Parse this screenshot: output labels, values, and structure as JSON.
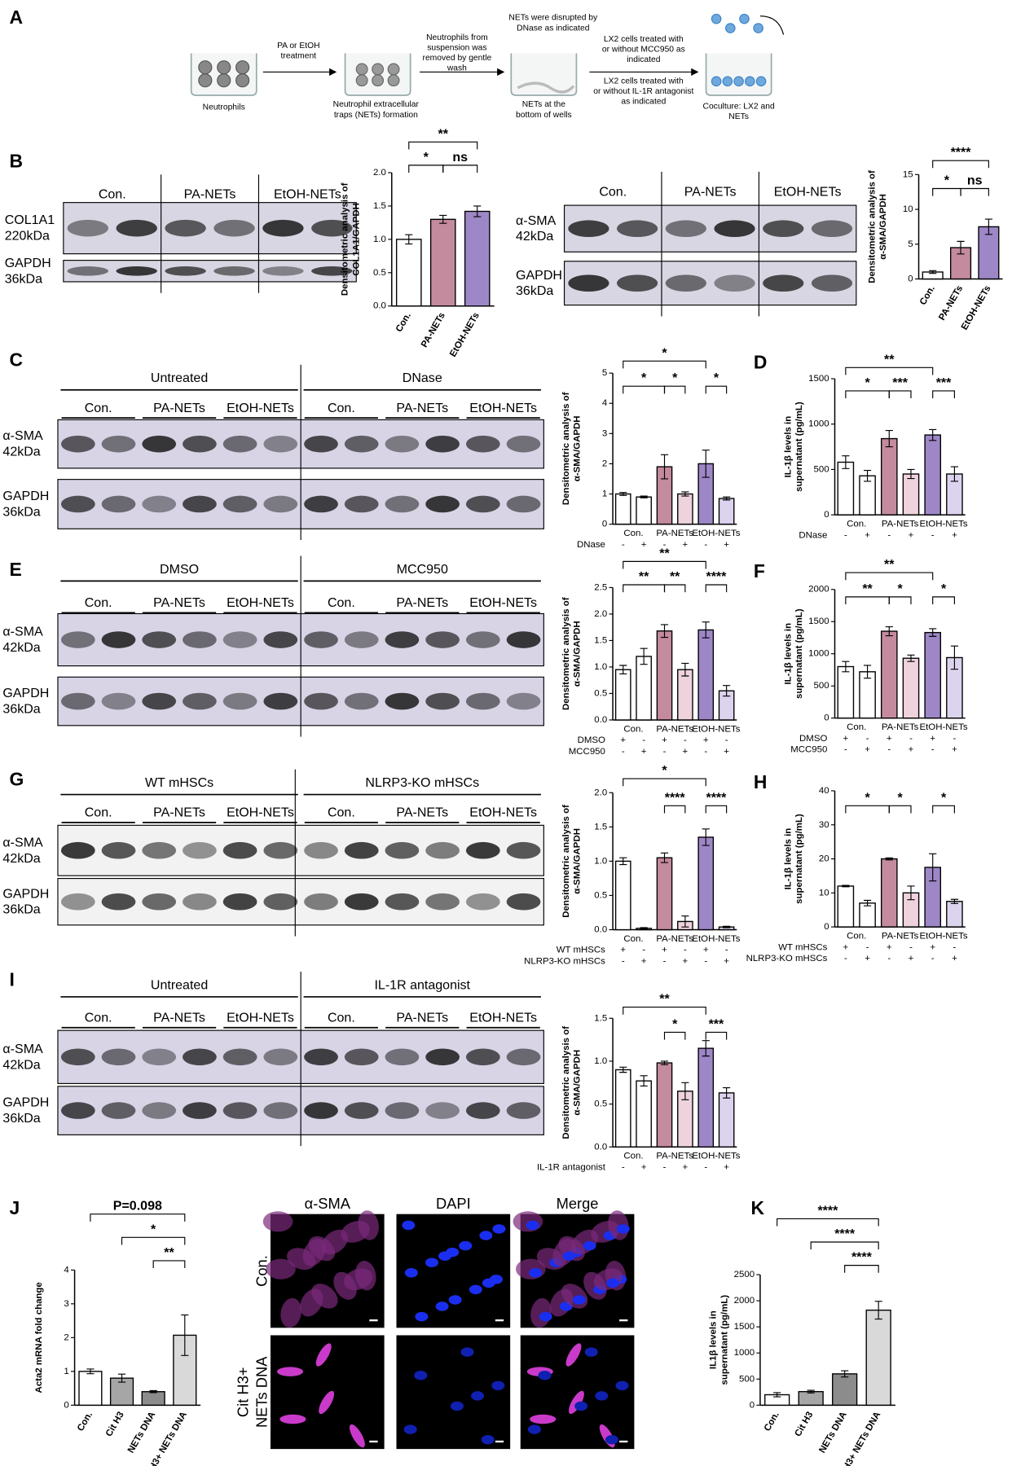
{
  "panel_letters": [
    "A",
    "B",
    "C",
    "D",
    "E",
    "F",
    "G",
    "H",
    "I",
    "J",
    "K"
  ],
  "schematic": {
    "labels": [
      [
        "Neutrophils"
      ],
      [
        "PA or EtOH",
        "treatment"
      ],
      [
        "Neutrophil extracellular",
        "traps (NETs) formation"
      ],
      [
        "Neutrophils from",
        "suspension was",
        "removed by gentle",
        "wash"
      ],
      [
        "NETs were disrupted by",
        "DNase as indicated"
      ],
      [
        "NETs at the",
        "bottom of wells"
      ],
      [
        "LX2 cells treated with",
        "or without MCC950 as",
        "indicated"
      ],
      [
        "LX2 cells treated with",
        "or without IL-1R antagonist",
        "as indicated"
      ],
      [
        "Coculture: LX2  and",
        "NETs"
      ]
    ]
  },
  "blots": [
    {
      "lanes": [
        "Con.",
        "PA-NETs",
        "EtOH-NETs"
      ],
      "rows": [
        {
          "protein": "COL1A1",
          "size": "220kDa"
        },
        {
          "protein": "GAPDH",
          "size": "36kDa"
        }
      ]
    },
    {
      "lanes": [
        "Con.",
        "PA-NETs",
        "EtOH-NETs"
      ],
      "rows": [
        {
          "protein": "α-SMA",
          "size": "42kDa"
        },
        {
          "protein": "GAPDH",
          "size": "36kDa"
        }
      ]
    },
    {
      "groups": [
        "Untreated",
        "DNase"
      ],
      "lanes": [
        "Con.",
        "PA-NETs",
        "EtOH-NETs",
        "Con.",
        "PA-NETs",
        "EtOH-NETs"
      ],
      "rows": [
        {
          "protein": "α-SMA",
          "size": "42kDa"
        },
        {
          "protein": "GAPDH",
          "size": "36kDa"
        }
      ]
    },
    {
      "groups": [
        "DMSO",
        "MCC950"
      ],
      "lanes": [
        "Con.",
        "PA-NETs",
        "EtOH-NETs",
        "Con.",
        "PA-NETs",
        "EtOH-NETs"
      ],
      "rows": [
        {
          "protein": "α-SMA",
          "size": "42kDa"
        },
        {
          "protein": "GAPDH",
          "size": "36kDa"
        }
      ]
    },
    {
      "groups": [
        "WT mHSCs",
        "NLRP3-KO mHSCs"
      ],
      "lanes": [
        "Con.",
        "PA-NETs",
        "EtOH-NETs",
        "Con.",
        "PA-NETs",
        "EtOH-NETs"
      ],
      "rows": [
        {
          "protein": "α-SMA",
          "size": "42kDa"
        },
        {
          "protein": "GAPDH",
          "size": "36kDa"
        }
      ]
    },
    {
      "groups": [
        "Untreated",
        "IL-1R antagonist"
      ],
      "lanes": [
        "Con.",
        "PA-NETs",
        "EtOH-NETs",
        "Con.",
        "PA-NETs",
        "EtOH-NETs"
      ],
      "rows": [
        {
          "protein": "α-SMA",
          "size": "42kDa"
        },
        {
          "protein": "GAPDH",
          "size": "36kDa"
        }
      ]
    }
  ],
  "microscopy": {
    "columns": [
      "α-SMA",
      "DAPI",
      "Merge"
    ],
    "rows": [
      [
        "Con."
      ],
      [
        "Cit H3+",
        "NETs DNA"
      ]
    ]
  },
  "chart_data": [
    {
      "type": "bar",
      "ylabel": [
        "Densitometric analysis of",
        "COL1A1/GAPDH"
      ],
      "categories": [
        "Con.",
        "PA-NETs",
        "EtOH-NETs"
      ],
      "values": [
        1.0,
        1.3,
        1.42
      ],
      "errors": [
        0.07,
        0.06,
        0.08
      ],
      "colors": [
        "#ffffff",
        "#c48a9d",
        "#9d87c7"
      ],
      "ylim": [
        0,
        2
      ],
      "yticks": [
        {
          "value": 0,
          "label": "0.0"
        },
        0.5,
        {
          "value": 1,
          "label": "1.0"
        },
        1.5,
        {
          "value": 2,
          "label": "2.0"
        }
      ],
      "annotations": [
        "**",
        "*",
        "ns"
      ]
    },
    {
      "type": "bar",
      "ylabel": [
        "Densitometric analysis of",
        "α-SMA/GAPDH"
      ],
      "categories": [
        "Con.",
        "PA-NETs",
        "EtOH-NETs"
      ],
      "values": [
        1.0,
        4.5,
        7.5
      ],
      "errors": [
        0.2,
        0.9,
        1.1
      ],
      "colors": [
        "#ffffff",
        "#c48a9d",
        "#9d87c7"
      ],
      "ylim": [
        0,
        15
      ],
      "yticks": [
        0,
        5,
        10,
        15
      ],
      "annotations": [
        "****",
        "*",
        "ns"
      ]
    },
    {
      "type": "bar",
      "ylabel": [
        "Densitometric analysis of",
        "α-SMA/GAPDH"
      ],
      "groups": [
        "Con.",
        "PA-NETs",
        "EtOH-NETs"
      ],
      "treatments": [
        {
          "name": "DNase",
          "signs": [
            "-",
            "+",
            "-",
            "+",
            "-",
            "+"
          ]
        }
      ],
      "values": [
        1.0,
        0.9,
        1.9,
        1.0,
        2.0,
        0.85
      ],
      "errors": [
        0.05,
        0.03,
        0.4,
        0.07,
        0.45,
        0.05
      ],
      "colors": [
        "#ffffff",
        "#ffffff",
        "#c48a9d",
        "#eed3dc",
        "#9d87c7",
        "#dcd3ef"
      ],
      "ylim": [
        0,
        5
      ],
      "yticks": [
        0,
        1,
        2,
        3,
        4,
        5
      ],
      "annotations": [
        "*",
        "*",
        "*",
        "*"
      ]
    },
    {
      "type": "bar",
      "ylabel": [
        "IL-1β levels in",
        "supernatant (pg/mL)"
      ],
      "groups": [
        "Con.",
        "PA-NETs",
        "EtOH-NETs"
      ],
      "treatments": [
        {
          "name": "DNase",
          "signs": [
            "-",
            "+",
            "-",
            "+",
            "-",
            "+"
          ]
        }
      ],
      "values": [
        580,
        430,
        840,
        450,
        880,
        450
      ],
      "errors": [
        70,
        60,
        90,
        50,
        60,
        80
      ],
      "colors": [
        "#ffffff",
        "#ffffff",
        "#c48a9d",
        "#eed3dc",
        "#9d87c7",
        "#dcd3ef"
      ],
      "ylim": [
        0,
        1500
      ],
      "yticks": [
        0,
        500,
        1000,
        1500
      ],
      "annotations": [
        "**",
        "*",
        "***",
        "***"
      ]
    },
    {
      "type": "bar",
      "ylabel": [
        "Densitometric analysis of",
        "α-SMA/GAPDH"
      ],
      "groups": [
        "Con.",
        "PA-NETs",
        "EtOH-NETs"
      ],
      "treatments": [
        {
          "name": "DMSO",
          "signs": [
            "+",
            "-",
            "+",
            "-",
            "+",
            "-"
          ]
        },
        {
          "name": "MCC950",
          "signs": [
            "-",
            "+",
            "-",
            "+",
            "-",
            "+"
          ]
        }
      ],
      "values": [
        0.95,
        1.2,
        1.68,
        0.95,
        1.7,
        0.55
      ],
      "errors": [
        0.08,
        0.15,
        0.12,
        0.12,
        0.15,
        0.1
      ],
      "colors": [
        "#ffffff",
        "#ffffff",
        "#c48a9d",
        "#eed3dc",
        "#9d87c7",
        "#dcd3ef"
      ],
      "ylim": [
        0,
        2.5
      ],
      "yticks": [
        {
          "value": 0,
          "label": "0.0"
        },
        0.5,
        {
          "value": 1,
          "label": "1.0"
        },
        1.5,
        {
          "value": 2,
          "label": "2.0"
        },
        2.5
      ],
      "annotations": [
        "**",
        "**",
        "**",
        "****"
      ]
    },
    {
      "type": "bar",
      "ylabel": [
        "IL-1β levels in",
        "supernatant (pg/mL)"
      ],
      "groups": [
        "Con.",
        "PA-NETs",
        "EtOH-NETs"
      ],
      "treatments": [
        {
          "name": "DMSO",
          "signs": [
            "+",
            "-",
            "+",
            "-",
            "+",
            "-"
          ]
        },
        {
          "name": "MCC950",
          "signs": [
            "-",
            "+",
            "-",
            "+",
            "-",
            "+"
          ]
        }
      ],
      "values": [
        800,
        720,
        1350,
        930,
        1330,
        940
      ],
      "errors": [
        80,
        100,
        70,
        50,
        60,
        180
      ],
      "colors": [
        "#ffffff",
        "#ffffff",
        "#c48a9d",
        "#eed3dc",
        "#9d87c7",
        "#dcd3ef"
      ],
      "ylim": [
        0,
        2000
      ],
      "yticks": [
        0,
        500,
        1000,
        1500,
        2000
      ],
      "annotations": [
        "**",
        "**",
        "*",
        "*"
      ]
    },
    {
      "type": "bar",
      "ylabel": [
        "Densitometric analysis of",
        "α-SMA/GAPDH"
      ],
      "groups": [
        "Con.",
        "PA-NETs",
        "EtOH-NETs"
      ],
      "treatments": [
        {
          "name": "WT mHSCs",
          "signs": [
            "+",
            "-",
            "+",
            "-",
            "+",
            "-"
          ]
        },
        {
          "name": "NLRP3-KO mHSCs",
          "signs": [
            "-",
            "+",
            "-",
            "+",
            "-",
            "+"
          ]
        }
      ],
      "values": [
        1.0,
        0.02,
        1.05,
        0.12,
        1.35,
        0.04
      ],
      "errors": [
        0.05,
        0.01,
        0.07,
        0.08,
        0.12,
        0.01
      ],
      "colors": [
        "#ffffff",
        "#ffffff",
        "#c48a9d",
        "#eed3dc",
        "#9d87c7",
        "#dcd3ef"
      ],
      "ylim": [
        0,
        2
      ],
      "yticks": [
        {
          "value": 0,
          "label": "0.0"
        },
        0.5,
        {
          "value": 1,
          "label": "1.0"
        },
        1.5,
        {
          "value": 2,
          "label": "2.0"
        }
      ],
      "annotations": [
        "*",
        "****",
        "****"
      ]
    },
    {
      "type": "bar",
      "ylabel": [
        "IL-1β levels in",
        "supernatant (pg/mL)"
      ],
      "groups": [
        "Con.",
        "PA-NETs",
        "EtOH-NETs"
      ],
      "treatments": [
        {
          "name": "WT mHSCs",
          "signs": [
            "+",
            "-",
            "+",
            "-",
            "+",
            "-"
          ]
        },
        {
          "name": "NLRP3-KO mHSCs",
          "signs": [
            "-",
            "+",
            "-",
            "+",
            "-",
            "+"
          ]
        }
      ],
      "values": [
        12,
        7,
        20,
        10,
        17.5,
        7.5
      ],
      "errors": [
        0.2,
        0.8,
        0.3,
        2,
        4,
        0.6
      ],
      "colors": [
        "#ffffff",
        "#ffffff",
        "#c48a9d",
        "#eed3dc",
        "#9d87c7",
        "#dcd3ef"
      ],
      "ylim": [
        0,
        40
      ],
      "yticks": [
        0,
        10,
        20,
        30,
        40
      ],
      "annotations": [
        "*",
        "*",
        "*"
      ]
    },
    {
      "type": "bar",
      "ylabel": [
        "Densitometric analysis of",
        "α-SMA/GAPDH"
      ],
      "groups": [
        "Con.",
        "PA-NETs",
        "EtOH-NETs"
      ],
      "treatments": [
        {
          "name": "IL-1R antagonist",
          "signs": [
            "-",
            "+",
            "-",
            "+",
            "-",
            "+"
          ]
        }
      ],
      "values": [
        0.9,
        0.77,
        0.98,
        0.65,
        1.15,
        0.63
      ],
      "errors": [
        0.03,
        0.06,
        0.02,
        0.1,
        0.09,
        0.06
      ],
      "colors": [
        "#ffffff",
        "#ffffff",
        "#c48a9d",
        "#eed3dc",
        "#9d87c7",
        "#dcd3ef"
      ],
      "ylim": [
        0,
        1.5
      ],
      "yticks": [
        {
          "value": 0,
          "label": "0.0"
        },
        0.5,
        {
          "value": 1,
          "label": "1.0"
        },
        1.5
      ],
      "annotations": [
        "**",
        "*",
        "***"
      ]
    },
    {
      "type": "bar",
      "ylabel": [
        "Acta2 mRNA fold change"
      ],
      "categories": [
        "Con.",
        "Cit H3",
        "NETs DNA",
        "Cit H3+ NETs DNA"
      ],
      "values": [
        1.0,
        0.8,
        0.4,
        2.07
      ],
      "errors": [
        0.07,
        0.12,
        0.03,
        0.6
      ],
      "colors": [
        "#ffffff",
        "#a6a6a6",
        "#8c8c8c",
        "#d9d9d9"
      ],
      "ylim": [
        0,
        4
      ],
      "yticks": [
        0,
        1,
        2,
        3,
        4
      ],
      "annotations": [
        "P=0.098",
        "*",
        "**"
      ]
    },
    {
      "type": "bar",
      "ylabel": [
        "IL1β levels in",
        "supernatant (pg/mL)"
      ],
      "categories": [
        "Con.",
        "Cit H3",
        "NETs DNA",
        "Cit H3+ NETs DNA"
      ],
      "values": [
        200,
        260,
        600,
        1820
      ],
      "errors": [
        40,
        25,
        60,
        170
      ],
      "colors": [
        "#ffffff",
        "#a6a6a6",
        "#8c8c8c",
        "#d9d9d9"
      ],
      "ylim": [
        0,
        2500
      ],
      "yticks": [
        0,
        500,
        1000,
        1500,
        2000,
        2500
      ],
      "annotations": [
        "****",
        "****",
        "****"
      ]
    }
  ]
}
